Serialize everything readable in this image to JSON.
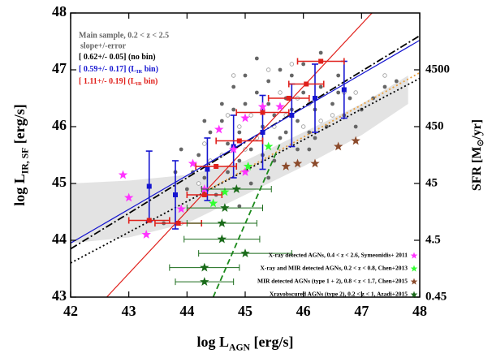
{
  "chart_data": {
    "type": "scatter",
    "xlabel": {
      "text": "log L",
      "sub": "AGN",
      "after": " [erg/s]"
    },
    "ylabel": {
      "text": "log L",
      "sub": "IR, SF",
      "after": " [erg/s]"
    },
    "y2label": {
      "text": "SFR [M",
      "sub": "⊙",
      "after": "/yr]"
    },
    "xlim": [
      42,
      48
    ],
    "xticks": [
      42,
      43,
      44,
      45,
      46,
      47,
      48
    ],
    "ylim": [
      43,
      48
    ],
    "yticks": [
      43,
      44,
      45,
      46,
      47,
      48
    ],
    "y2lim": [
      0.45,
      45000
    ],
    "y2ticks": [
      0.45,
      4.5,
      45,
      450,
      4500
    ],
    "y2scale": "log",
    "subtitle": "slope+/-error",
    "band": {
      "color": "#e3e3e3",
      "x": [
        42,
        43,
        44,
        45,
        46,
        47,
        47.8
      ],
      "upper": [
        45.0,
        45.05,
        45.15,
        45.4,
        45.9,
        46.4,
        46.9
      ],
      "lower": [
        43.95,
        44.05,
        44.3,
        44.8,
        45.3,
        45.85,
        46.4
      ]
    },
    "fits": [
      {
        "text": "[ 0.62+/- 0.05] (no bin)",
        "color": "#000000",
        "dash": "9,3,2,3",
        "x": [
          42,
          48
        ],
        "y": [
          43.85,
          47.6
        ]
      },
      {
        "text": "[ 0.59+/- 0.17] (L",
        "sub": "IR",
        "after": " bin)",
        "color": "#1515d0",
        "dash": "none",
        "x": [
          42,
          48
        ],
        "y": [
          43.95,
          47.52
        ]
      },
      {
        "text": "[ 1.11+/- 0.19] (L",
        "sub": "IR",
        "after": " bin)",
        "color": "#e0201b",
        "dash": "none",
        "x": [
          42.62,
          47.18
        ],
        "y": [
          43,
          48
        ]
      }
    ],
    "lines": [
      {
        "color": "#000000",
        "dash": "2,3",
        "x": [
          42,
          48
        ],
        "y": [
          43.6,
          46.85
        ]
      },
      {
        "color": "#e8a040",
        "dash": "2,3",
        "x": [
          44.3,
          48
        ],
        "y": [
          44.85,
          46.95
        ]
      },
      {
        "color": "#1a8a1a",
        "dash": "7,4",
        "x": [
          44.45,
          45.6
        ],
        "y": [
          43,
          45.7
        ]
      }
    ],
    "series": [
      {
        "name": "Main sample, 0.2 < z < 2.5",
        "color": "#666666",
        "marker": "dot",
        "x": [
          44.2,
          44.4,
          44.5,
          44.6,
          44.7,
          44.8,
          44.9,
          45.0,
          45.1,
          45.2,
          45.3,
          45.4,
          45.5,
          45.6,
          45.7,
          45.8,
          45.9,
          46.0,
          46.1,
          46.2,
          46.3,
          46.4,
          46.5,
          46.6,
          46.7,
          46.8,
          46.9,
          47.0,
          47.2,
          47.4,
          43.6,
          43.8,
          44.0,
          44.1,
          44.3,
          44.5,
          44.7,
          44.9,
          45.1,
          45.3,
          45.5,
          45.7,
          45.9,
          46.1,
          45.2,
          45.6,
          45.0,
          44.8,
          46.0,
          46.3,
          44.6,
          44.3,
          43.9,
          45.4,
          45.8,
          46.6,
          47.6,
          44.9,
          45.4,
          46.2
        ],
        "y": [
          45.5,
          45.9,
          45.3,
          46.1,
          45.7,
          46.3,
          45.9,
          46.4,
          45.6,
          46.6,
          46.0,
          46.8,
          46.2,
          45.8,
          46.5,
          46.9,
          46.1,
          46.6,
          45.9,
          46.3,
          46.7,
          46.0,
          46.4,
          46.9,
          46.2,
          46.5,
          46.0,
          46.3,
          46.5,
          46.7,
          44.3,
          45.2,
          44.9,
          45.2,
          45.1,
          44.8,
          45.2,
          45.4,
          45.0,
          45.5,
          45.4,
          45.9,
          45.6,
          45.6,
          47.2,
          47.0,
          46.9,
          46.7,
          47.1,
          47.3,
          46.4,
          46.1,
          45.6,
          46.4,
          46.3,
          46.6,
          46.8,
          44.6,
          45.1,
          45.8
        ]
      },
      {
        "color": "#999999",
        "marker": "open",
        "x": [
          44.3,
          44.6,
          44.9,
          45.1,
          45.3,
          45.5,
          45.7,
          45.9,
          46.1,
          46.3,
          46.5,
          46.7,
          44.8,
          45.4,
          45.6,
          44.4,
          44.2,
          45.0,
          46.0,
          46.9,
          47.4,
          45.2,
          43.9,
          44.7,
          45.8
        ],
        "y": [
          45.7,
          45.5,
          46.0,
          46.2,
          46.3,
          46.0,
          46.2,
          46.5,
          46.4,
          46.1,
          46.2,
          46.6,
          46.9,
          47.0,
          46.6,
          45.4,
          45.0,
          45.6,
          46.0,
          46.6,
          46.9,
          45.8,
          44.3,
          46.2,
          47.1
        ]
      },
      {
        "color": "#1515d0",
        "marker": "square",
        "x": [
          43.35,
          43.8,
          44.35,
          44.8,
          45.3,
          45.8,
          46.2,
          46.7
        ],
        "y": [
          44.95,
          44.8,
          45.25,
          45.65,
          45.9,
          46.2,
          46.5,
          46.65
        ],
        "yerr": [
          0.62,
          0.6,
          0.55,
          0.55,
          0.65,
          0.55,
          0.6,
          0.5
        ]
      },
      {
        "color": "#e0201b",
        "marker": "square",
        "x": [
          43.35,
          43.85,
          44.3,
          44.5,
          44.9,
          45.3,
          45.75,
          46.05,
          46.3
        ],
        "y": [
          44.35,
          44.3,
          44.8,
          45.3,
          45.75,
          46.25,
          46.5,
          46.75,
          47.15
        ],
        "xerr": [
          0.35,
          0.4,
          0.3,
          0.35,
          0.4,
          0.45,
          0.35,
          0.3,
          0.4
        ]
      },
      {
        "name": "X-ray detected AGNs, 0.4 < z < 2.6, Symeonidis+ 2011",
        "color": "#ff33ff",
        "marker": "star",
        "x": [
          42.9,
          43.0,
          43.3,
          43.9,
          44.1,
          44.55,
          44.8,
          45.0,
          45.3,
          45.0,
          45.6,
          44.3
        ],
        "y": [
          45.15,
          44.75,
          44.1,
          44.55,
          45.35,
          45.95,
          45.6,
          46.15,
          46.35,
          45.2,
          46.35,
          44.9
        ]
      },
      {
        "name": "X-ray and MIR detected AGNs, 0.2 < z < 0.8, Chen+2013",
        "color": "#33ff33",
        "marker": "star",
        "x": [
          44.45,
          44.65,
          45.05,
          45.4
        ],
        "y": [
          44.65,
          44.85,
          45.3,
          45.65
        ]
      },
      {
        "name": "MIR detected AGNs (type 1 + 2), 0.8 < z < 1.7, Chen+2015",
        "color": "#8b4a2b",
        "marker": "star",
        "x": [
          45.7,
          45.9,
          46.2,
          46.6,
          46.9
        ],
        "y": [
          45.3,
          45.35,
          45.35,
          45.65,
          45.75
        ]
      },
      {
        "name": "Xrayobscured AGNs (type 2), 0.2 < z < 1, Azadi+2015",
        "color": "#1a6b1a",
        "marker": "star",
        "x": [
          44.3,
          44.3,
          45.0,
          44.6,
          44.6,
          44.65,
          44.85
        ],
        "y": [
          43.27,
          43.52,
          43.77,
          44.02,
          44.3,
          44.57,
          44.9
        ],
        "xerr": [
          0.5,
          0.6,
          0.8,
          0.65,
          0.6,
          0.65,
          0.6
        ]
      }
    ],
    "legend": "lower right"
  }
}
